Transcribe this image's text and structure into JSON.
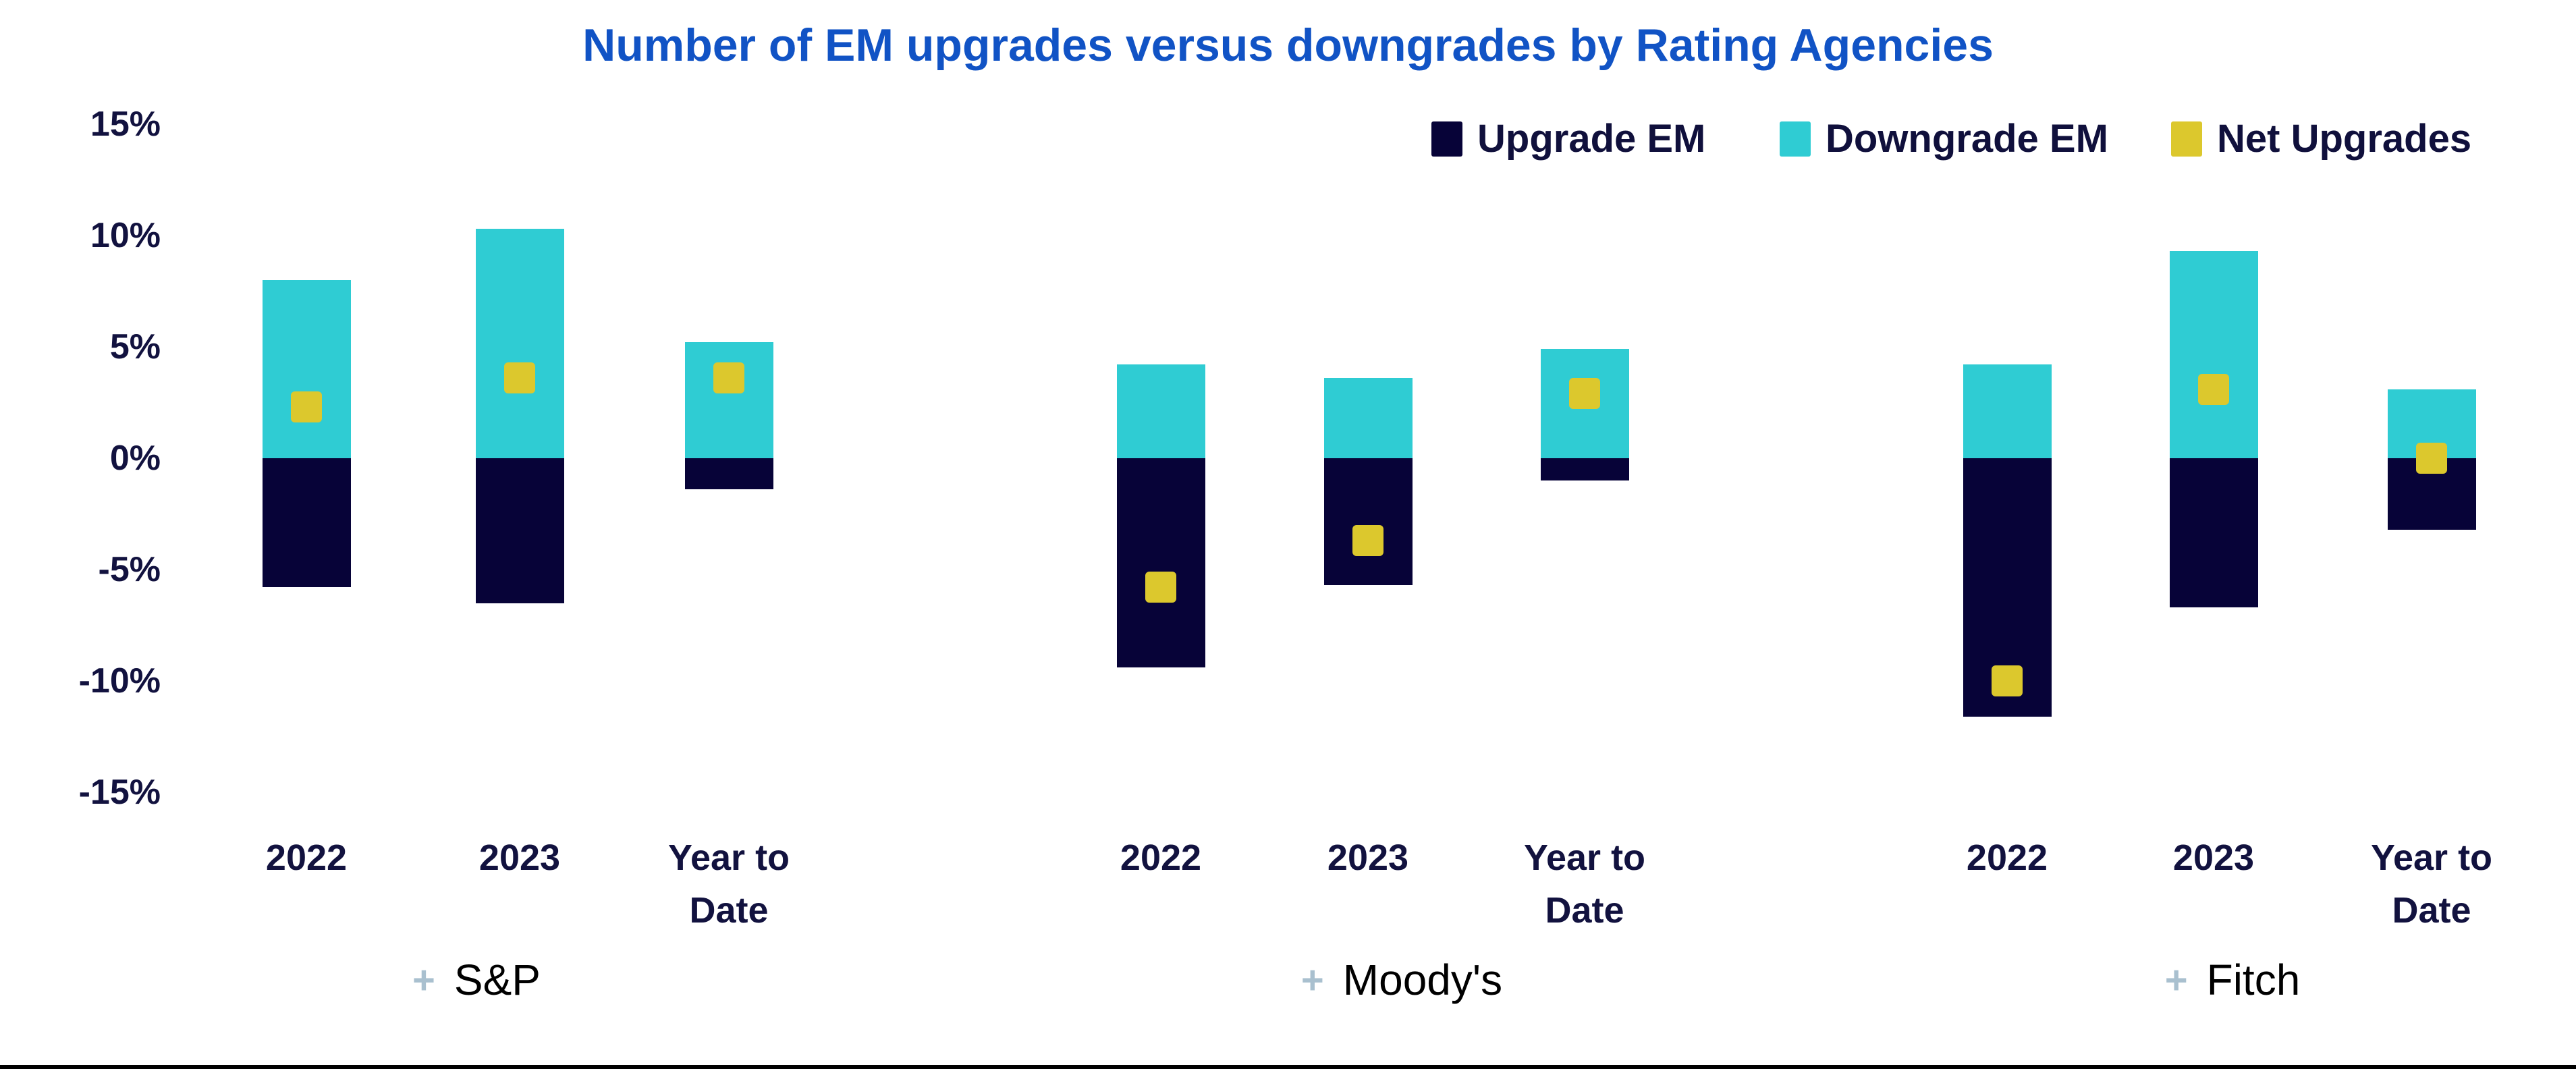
{
  "page": {
    "background": "#ffffff",
    "bottom_rule_color": "#000000"
  },
  "chart_data": {
    "type": "bar",
    "title": "Number of EM upgrades versus downgrades by Rating Agencies",
    "title_color": "#1153c5",
    "stacking": "signed (Downgrade EM plotted above 0, Upgrade EM below 0, Net Upgrades as square marker)",
    "grid": "off",
    "legend_position": "top-right",
    "y_axis": {
      "ticks": [
        "15%",
        "10%",
        "5%",
        "0%",
        "-5%",
        "-10%",
        "-15%"
      ],
      "tick_values": [
        15,
        10,
        5,
        0,
        -5,
        -10,
        -15
      ],
      "min": -15,
      "max": 15,
      "unit": "%"
    },
    "legend": [
      {
        "label": "Upgrade EM",
        "color": "#070338"
      },
      {
        "label": "Downgrade EM",
        "color": "#2fccd3"
      },
      {
        "label": "Net Upgrades",
        "color": "#dcc82d"
      }
    ],
    "text_colors": {
      "axis_labels": "#12123f",
      "group_labels": "#000000",
      "plus_icon": "#a9c0cf"
    },
    "groups": [
      {
        "name": "S&P",
        "expand_icon": "+",
        "categories": [
          "2022",
          "2023",
          "Year to Date"
        ],
        "downgrade_em": [
          8.0,
          10.3,
          5.2
        ],
        "upgrade_em": [
          -5.8,
          -6.5,
          -1.4
        ],
        "net_upgrades": [
          2.3,
          3.6,
          3.6
        ]
      },
      {
        "name": "Moody's",
        "expand_icon": "+",
        "categories": [
          "2022",
          "2023",
          "Year to Date"
        ],
        "downgrade_em": [
          4.2,
          3.6,
          4.9
        ],
        "upgrade_em": [
          -9.4,
          -5.7,
          -1.0
        ],
        "net_upgrades": [
          -5.8,
          -3.7,
          2.9
        ]
      },
      {
        "name": "Fitch",
        "expand_icon": "+",
        "categories": [
          "2022",
          "2023",
          "Year to Date"
        ],
        "downgrade_em": [
          4.2,
          9.3,
          3.1
        ],
        "upgrade_em": [
          -11.6,
          -6.7,
          -3.2
        ],
        "net_upgrades": [
          -10.0,
          3.1,
          0.0
        ]
      }
    ]
  }
}
